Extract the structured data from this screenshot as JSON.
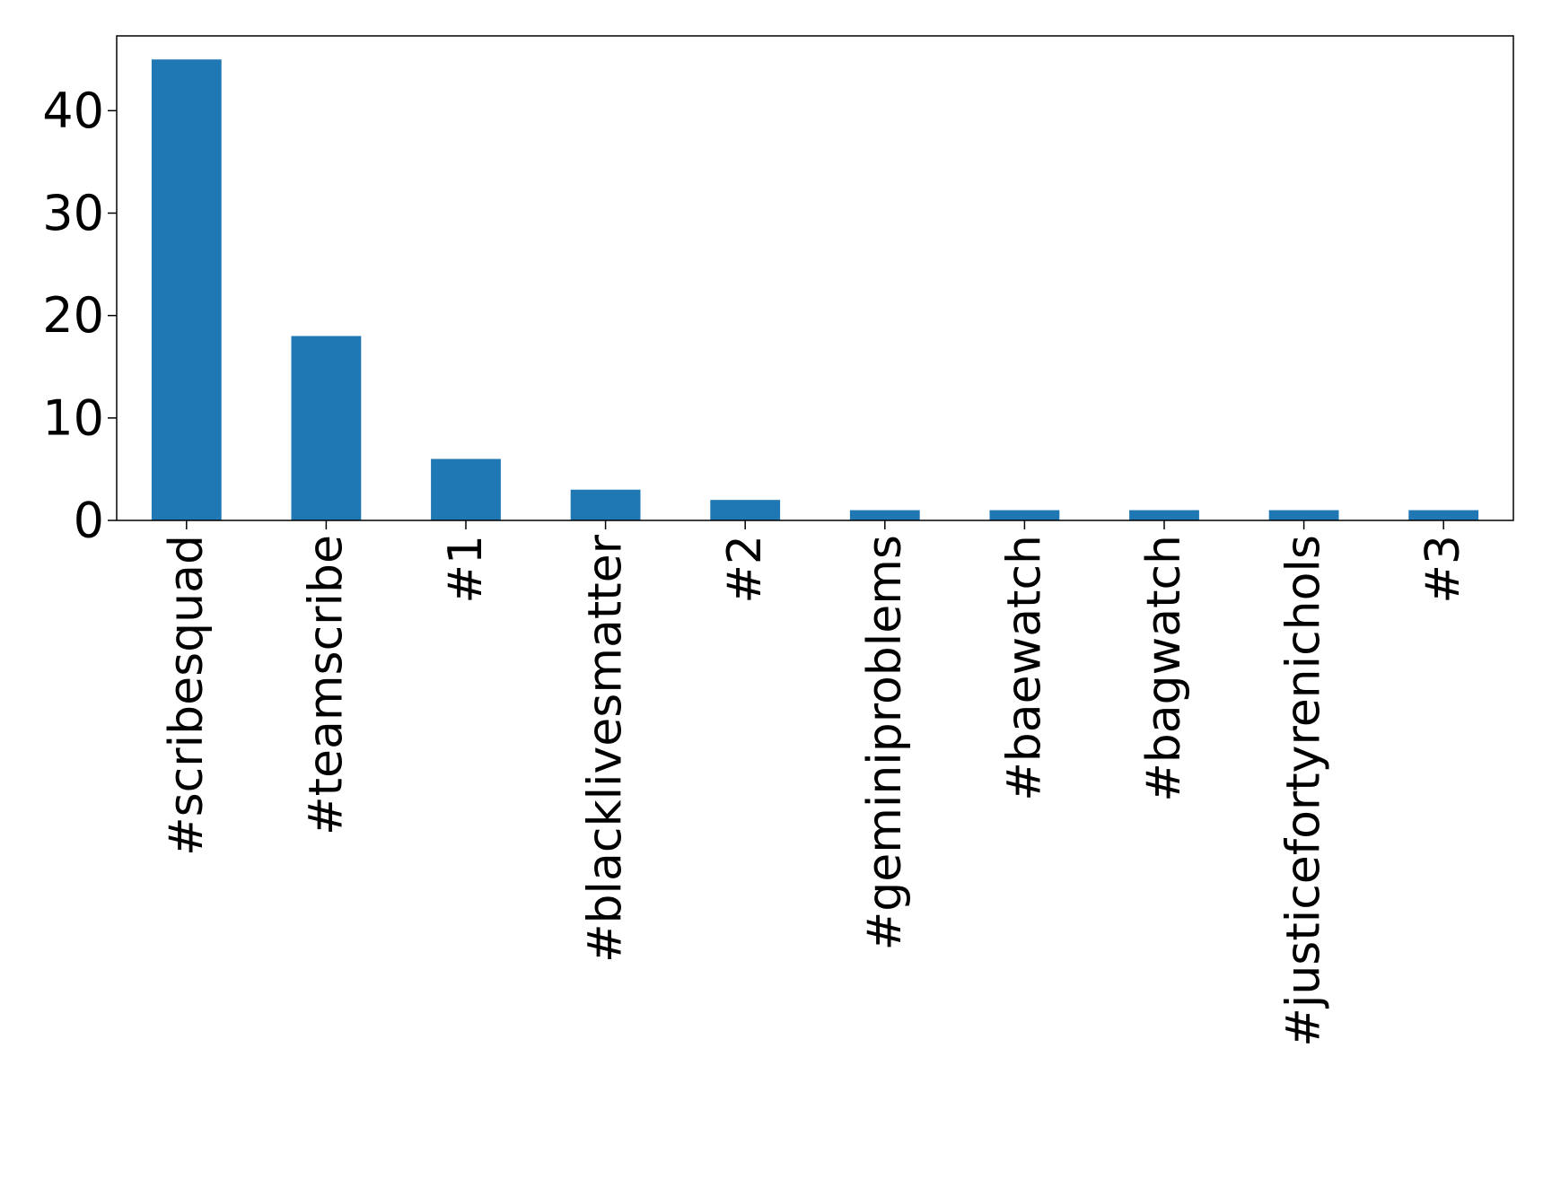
{
  "chart_data": {
    "type": "bar",
    "title": "",
    "xlabel": "",
    "ylabel": "",
    "categories": [
      "#scribesquad",
      "#teamscribe",
      "#1",
      "#blacklivesmatter",
      "#2",
      "#geminiproblems",
      "#baewatch",
      "#bagwatch",
      "#justicefortyrenichols",
      "#3"
    ],
    "values": [
      45,
      18,
      6,
      3,
      2,
      1,
      1,
      1,
      1,
      1
    ],
    "ylim": [
      0,
      47.3
    ],
    "yticks": [
      0,
      10,
      20,
      30,
      40
    ],
    "grid": false,
    "legend": "none",
    "bar_color": "#1f77b4"
  }
}
